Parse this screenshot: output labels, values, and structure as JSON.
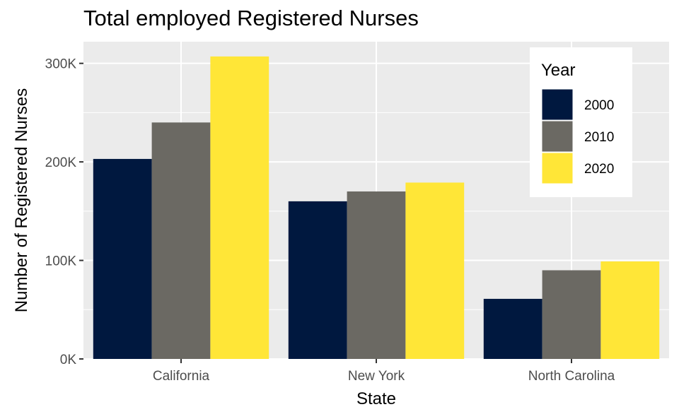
{
  "chart_data": {
    "type": "bar",
    "title": "Total employed Registered Nurses",
    "xlabel": "State",
    "ylabel": "Number of Registered Nurses",
    "categories": [
      "California",
      "New York",
      "North Carolina"
    ],
    "series": [
      {
        "name": "2000",
        "color": "#00183f",
        "values": [
          203000,
          160000,
          61000
        ]
      },
      {
        "name": "2010",
        "color": "#6b6963",
        "values": [
          240000,
          170000,
          90000
        ]
      },
      {
        "name": "2020",
        "color": "#ffe637",
        "values": [
          307000,
          179000,
          99000
        ]
      }
    ],
    "ylim": [
      0,
      322000
    ],
    "yticks": [
      {
        "value": 0,
        "label": "0K"
      },
      {
        "value": 100000,
        "label": "100K"
      },
      {
        "value": 200000,
        "label": "200K"
      },
      {
        "value": 300000,
        "label": "300K"
      }
    ],
    "legend": {
      "title": "Year",
      "position": "top-right"
    },
    "grid": true,
    "panel_color": "#ebebeb"
  }
}
